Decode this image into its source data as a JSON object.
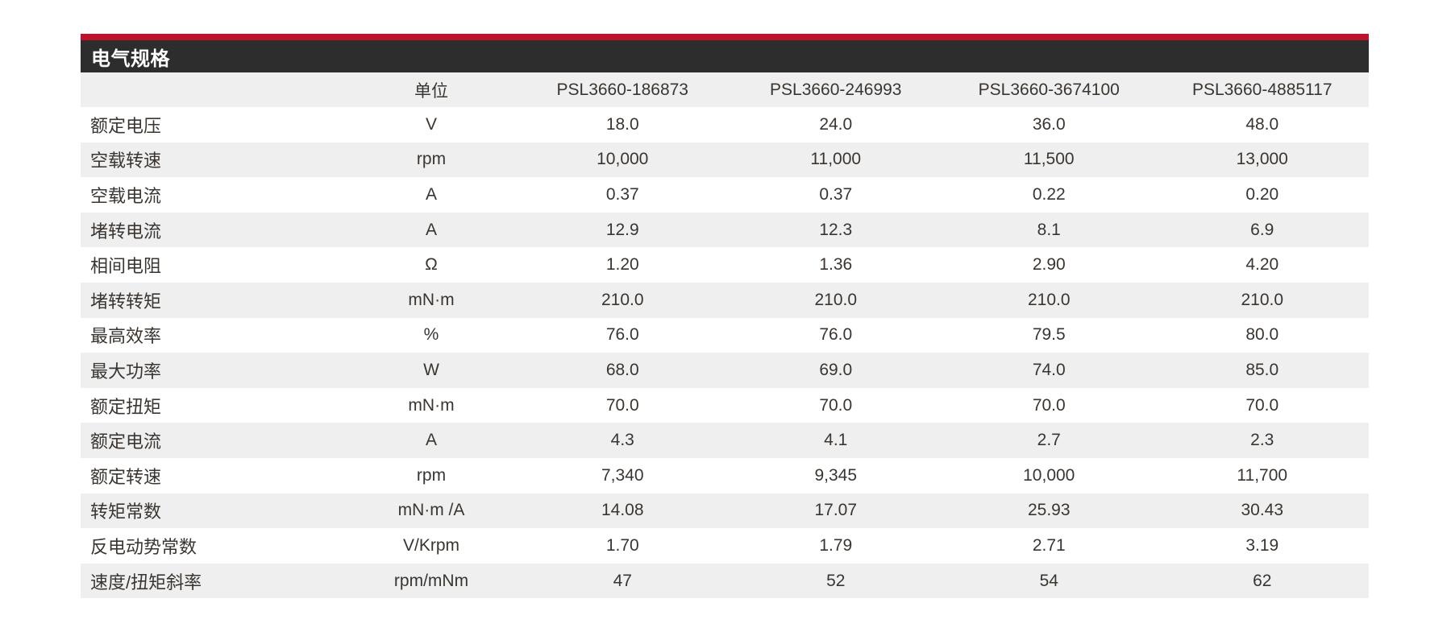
{
  "theme": {
    "accent": "#c1122c",
    "title_bg": "#2e2d2d",
    "title_text": "#ffffff",
    "stripe": "#efefef",
    "text": "#3a3530"
  },
  "panel": {
    "title": "电气规格"
  },
  "table": {
    "unit_header": "单位",
    "columns": [
      "PSL3660-186873",
      "PSL3660-246993",
      "PSL3660-3674100",
      "PSL3660-4885117"
    ],
    "rows": [
      {
        "label": "额定电压",
        "unit": "V",
        "values": [
          "18.0",
          "24.0",
          "36.0",
          "48.0"
        ]
      },
      {
        "label": "空载转速",
        "unit": "rpm",
        "values": [
          "10,000",
          "11,000",
          "11,500",
          "13,000"
        ]
      },
      {
        "label": "空载电流",
        "unit": "A",
        "values": [
          "0.37",
          "0.37",
          "0.22",
          "0.20"
        ]
      },
      {
        "label": "堵转电流",
        "unit": "A",
        "values": [
          "12.9",
          "12.3",
          "8.1",
          "6.9"
        ]
      },
      {
        "label": "相间电阻",
        "unit": "Ω",
        "values": [
          "1.20",
          "1.36",
          "2.90",
          "4.20"
        ]
      },
      {
        "label": "堵转转矩",
        "unit": "mN·m",
        "values": [
          "210.0",
          "210.0",
          "210.0",
          "210.0"
        ]
      },
      {
        "label": "最高效率",
        "unit": "%",
        "values": [
          "76.0",
          "76.0",
          "79.5",
          "80.0"
        ]
      },
      {
        "label": "最大功率",
        "unit": "W",
        "values": [
          "68.0",
          "69.0",
          "74.0",
          "85.0"
        ]
      },
      {
        "label": "额定扭矩",
        "unit": "mN·m",
        "values": [
          "70.0",
          "70.0",
          "70.0",
          "70.0"
        ]
      },
      {
        "label": "额定电流",
        "unit": "A",
        "values": [
          "4.3",
          "4.1",
          "2.7",
          "2.3"
        ]
      },
      {
        "label": "额定转速",
        "unit": "rpm",
        "values": [
          "7,340",
          "9,345",
          "10,000",
          "11,700"
        ]
      },
      {
        "label": "转矩常数",
        "unit": "mN·m /A",
        "values": [
          "14.08",
          "17.07",
          "25.93",
          "30.43"
        ]
      },
      {
        "label": "反电动势常数",
        "unit": "V/Krpm",
        "values": [
          "1.70",
          "1.79",
          "2.71",
          "3.19"
        ]
      },
      {
        "label": "速度/扭矩斜率",
        "unit": "rpm/mNm",
        "values": [
          "47",
          "52",
          "54",
          "62"
        ]
      }
    ]
  }
}
